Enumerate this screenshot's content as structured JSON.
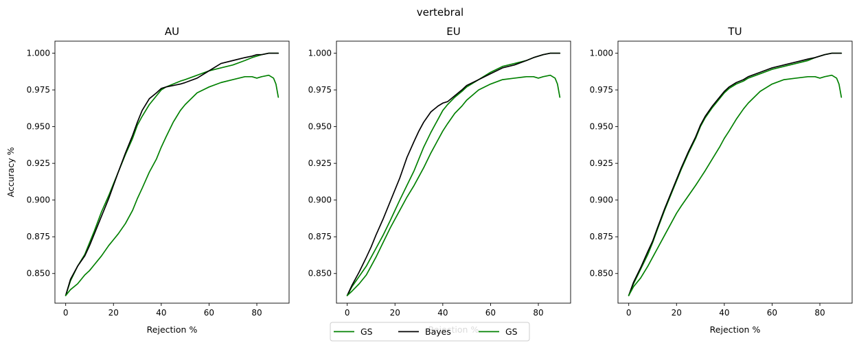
{
  "suptitle": "vertebral",
  "chart_data": [
    {
      "type": "line",
      "title": "AU",
      "xlabel": "Rejection %",
      "ylabel": "Accuracy %",
      "xlim": [
        -4.5,
        93.5
      ],
      "ylim": [
        0.8298,
        1.0082
      ],
      "xticks": [
        "0",
        "20",
        "40",
        "60",
        "80"
      ],
      "yticks": [
        "0.850",
        "0.875",
        "0.900",
        "0.925",
        "0.950",
        "0.975",
        "1.000"
      ],
      "grid": false,
      "series": [
        {
          "name": "GS",
          "color": "#008000",
          "x": [
            0,
            2,
            5,
            8,
            10,
            12,
            15,
            18,
            20,
            22,
            25,
            28,
            30,
            32,
            35,
            38,
            40,
            42,
            45,
            48,
            50,
            55,
            60,
            65,
            70,
            75,
            78,
            80,
            82,
            85,
            87,
            89
          ],
          "y": [
            0.835,
            0.845,
            0.855,
            0.863,
            0.871,
            0.879,
            0.892,
            0.903,
            0.911,
            0.919,
            0.931,
            0.942,
            0.951,
            0.957,
            0.965,
            0.971,
            0.975,
            0.977,
            0.979,
            0.981,
            0.982,
            0.985,
            0.988,
            0.99,
            0.992,
            0.995,
            0.997,
            0.998,
            0.999,
            1.0,
            1.0,
            1.0
          ]
        },
        {
          "name": "Bayes",
          "color": "#000000",
          "x": [
            0,
            2,
            5,
            8,
            10,
            12,
            15,
            18,
            20,
            22,
            25,
            28,
            30,
            32,
            35,
            38,
            40,
            42,
            45,
            48,
            50,
            55,
            60,
            65,
            70,
            75,
            78,
            80,
            82,
            85,
            87,
            89
          ],
          "y": [
            0.835,
            0.846,
            0.855,
            0.862,
            0.869,
            0.877,
            0.889,
            0.901,
            0.91,
            0.919,
            0.932,
            0.944,
            0.953,
            0.961,
            0.969,
            0.973,
            0.976,
            0.977,
            0.978,
            0.979,
            0.98,
            0.983,
            0.988,
            0.993,
            0.995,
            0.997,
            0.998,
            0.999,
            0.999,
            1.0,
            1.0,
            1.0
          ]
        },
        {
          "name": "GS",
          "color": "#008000",
          "x": [
            0,
            2,
            5,
            8,
            10,
            12,
            15,
            18,
            20,
            22,
            25,
            28,
            30,
            32,
            35,
            38,
            40,
            42,
            45,
            48,
            50,
            55,
            60,
            65,
            70,
            75,
            78,
            80,
            82,
            85,
            87,
            88,
            89
          ],
          "y": [
            0.835,
            0.839,
            0.843,
            0.849,
            0.852,
            0.856,
            0.862,
            0.869,
            0.873,
            0.877,
            0.884,
            0.893,
            0.901,
            0.908,
            0.919,
            0.928,
            0.936,
            0.943,
            0.953,
            0.961,
            0.965,
            0.973,
            0.977,
            0.98,
            0.982,
            0.984,
            0.984,
            0.983,
            0.984,
            0.985,
            0.983,
            0.979,
            0.97
          ]
        }
      ]
    },
    {
      "type": "line",
      "title": "EU",
      "xlabel": "Rejection %",
      "ylabel": "",
      "xlim": [
        -4.5,
        93.5
      ],
      "ylim": [
        0.8298,
        1.0082
      ],
      "xticks": [
        "0",
        "20",
        "40",
        "60",
        "80"
      ],
      "yticks": [
        "0.850",
        "0.875",
        "0.900",
        "0.925",
        "0.950",
        "0.975",
        "1.000"
      ],
      "grid": false,
      "series": [
        {
          "name": "GS",
          "color": "#008000",
          "x": [
            0,
            2,
            5,
            8,
            10,
            12,
            15,
            18,
            20,
            22,
            25,
            28,
            30,
            32,
            35,
            38,
            40,
            42,
            45,
            48,
            50,
            55,
            60,
            65,
            70,
            75,
            78,
            80,
            82,
            85,
            87,
            89
          ],
          "y": [
            0.835,
            0.841,
            0.848,
            0.855,
            0.861,
            0.867,
            0.876,
            0.886,
            0.893,
            0.9,
            0.91,
            0.92,
            0.928,
            0.936,
            0.946,
            0.955,
            0.961,
            0.965,
            0.97,
            0.974,
            0.977,
            0.982,
            0.987,
            0.991,
            0.993,
            0.995,
            0.997,
            0.998,
            0.999,
            1.0,
            1.0,
            1.0
          ]
        },
        {
          "name": "Bayes",
          "color": "#000000",
          "x": [
            0,
            2,
            5,
            8,
            10,
            12,
            15,
            18,
            20,
            22,
            25,
            28,
            30,
            32,
            35,
            38,
            40,
            42,
            45,
            48,
            50,
            55,
            60,
            65,
            70,
            75,
            78,
            80,
            82,
            85,
            87,
            89
          ],
          "y": [
            0.835,
            0.842,
            0.851,
            0.861,
            0.868,
            0.876,
            0.887,
            0.899,
            0.907,
            0.915,
            0.929,
            0.94,
            0.947,
            0.953,
            0.96,
            0.964,
            0.966,
            0.967,
            0.971,
            0.975,
            0.978,
            0.982,
            0.986,
            0.99,
            0.992,
            0.995,
            0.997,
            0.998,
            0.999,
            1.0,
            1.0,
            1.0
          ]
        },
        {
          "name": "GS",
          "color": "#008000",
          "x": [
            0,
            2,
            5,
            8,
            10,
            12,
            15,
            18,
            20,
            22,
            25,
            28,
            30,
            32,
            35,
            38,
            40,
            42,
            45,
            48,
            50,
            55,
            60,
            65,
            70,
            75,
            78,
            80,
            82,
            85,
            87,
            88,
            89
          ],
          "y": [
            0.835,
            0.838,
            0.843,
            0.849,
            0.855,
            0.861,
            0.871,
            0.881,
            0.887,
            0.893,
            0.902,
            0.91,
            0.916,
            0.922,
            0.932,
            0.941,
            0.947,
            0.952,
            0.959,
            0.964,
            0.968,
            0.975,
            0.979,
            0.982,
            0.983,
            0.984,
            0.984,
            0.983,
            0.984,
            0.985,
            0.983,
            0.979,
            0.97
          ]
        }
      ]
    },
    {
      "type": "line",
      "title": "TU",
      "xlabel": "Rejection %",
      "ylabel": "",
      "xlim": [
        -4.5,
        93.5
      ],
      "ylim": [
        0.8298,
        1.0082
      ],
      "xticks": [
        "0",
        "20",
        "40",
        "60",
        "80"
      ],
      "yticks": [
        "0.850",
        "0.875",
        "0.900",
        "0.925",
        "0.950",
        "0.975",
        "1.000"
      ],
      "grid": false,
      "series": [
        {
          "name": "GS",
          "color": "#008000",
          "x": [
            0,
            2,
            5,
            8,
            10,
            12,
            15,
            18,
            20,
            22,
            25,
            28,
            30,
            32,
            35,
            38,
            40,
            42,
            45,
            48,
            50,
            55,
            60,
            65,
            70,
            75,
            78,
            80,
            82,
            85,
            87,
            89
          ],
          "y": [
            0.835,
            0.843,
            0.853,
            0.863,
            0.871,
            0.88,
            0.893,
            0.905,
            0.913,
            0.921,
            0.932,
            0.942,
            0.95,
            0.956,
            0.963,
            0.969,
            0.973,
            0.976,
            0.979,
            0.981,
            0.983,
            0.986,
            0.989,
            0.991,
            0.993,
            0.995,
            0.997,
            0.998,
            0.999,
            1.0,
            1.0,
            1.0
          ]
        },
        {
          "name": "Bayes",
          "color": "#000000",
          "x": [
            0,
            2,
            5,
            8,
            10,
            12,
            15,
            18,
            20,
            22,
            25,
            28,
            30,
            32,
            35,
            38,
            40,
            42,
            45,
            48,
            50,
            55,
            60,
            65,
            70,
            75,
            78,
            80,
            82,
            85,
            87,
            89
          ],
          "y": [
            0.835,
            0.844,
            0.854,
            0.865,
            0.872,
            0.881,
            0.894,
            0.906,
            0.914,
            0.922,
            0.933,
            0.943,
            0.951,
            0.957,
            0.964,
            0.97,
            0.974,
            0.977,
            0.98,
            0.982,
            0.984,
            0.987,
            0.99,
            0.992,
            0.994,
            0.996,
            0.997,
            0.998,
            0.999,
            1.0,
            1.0,
            1.0
          ]
        },
        {
          "name": "GS",
          "color": "#008000",
          "x": [
            0,
            2,
            5,
            8,
            10,
            12,
            15,
            18,
            20,
            22,
            25,
            28,
            30,
            32,
            35,
            38,
            40,
            42,
            45,
            48,
            50,
            55,
            60,
            65,
            70,
            75,
            78,
            80,
            82,
            85,
            87,
            88,
            89
          ],
          "y": [
            0.835,
            0.841,
            0.847,
            0.855,
            0.861,
            0.867,
            0.876,
            0.885,
            0.891,
            0.896,
            0.903,
            0.91,
            0.915,
            0.92,
            0.928,
            0.936,
            0.942,
            0.947,
            0.955,
            0.962,
            0.966,
            0.974,
            0.979,
            0.982,
            0.983,
            0.984,
            0.984,
            0.983,
            0.984,
            0.985,
            0.983,
            0.979,
            0.97
          ]
        }
      ]
    }
  ],
  "legend": {
    "position": "bottom-center",
    "entries": [
      {
        "label": "GS",
        "color": "#008000"
      },
      {
        "label": "Bayes",
        "color": "#000000"
      },
      {
        "label": "GS",
        "color": "#008000"
      }
    ]
  }
}
